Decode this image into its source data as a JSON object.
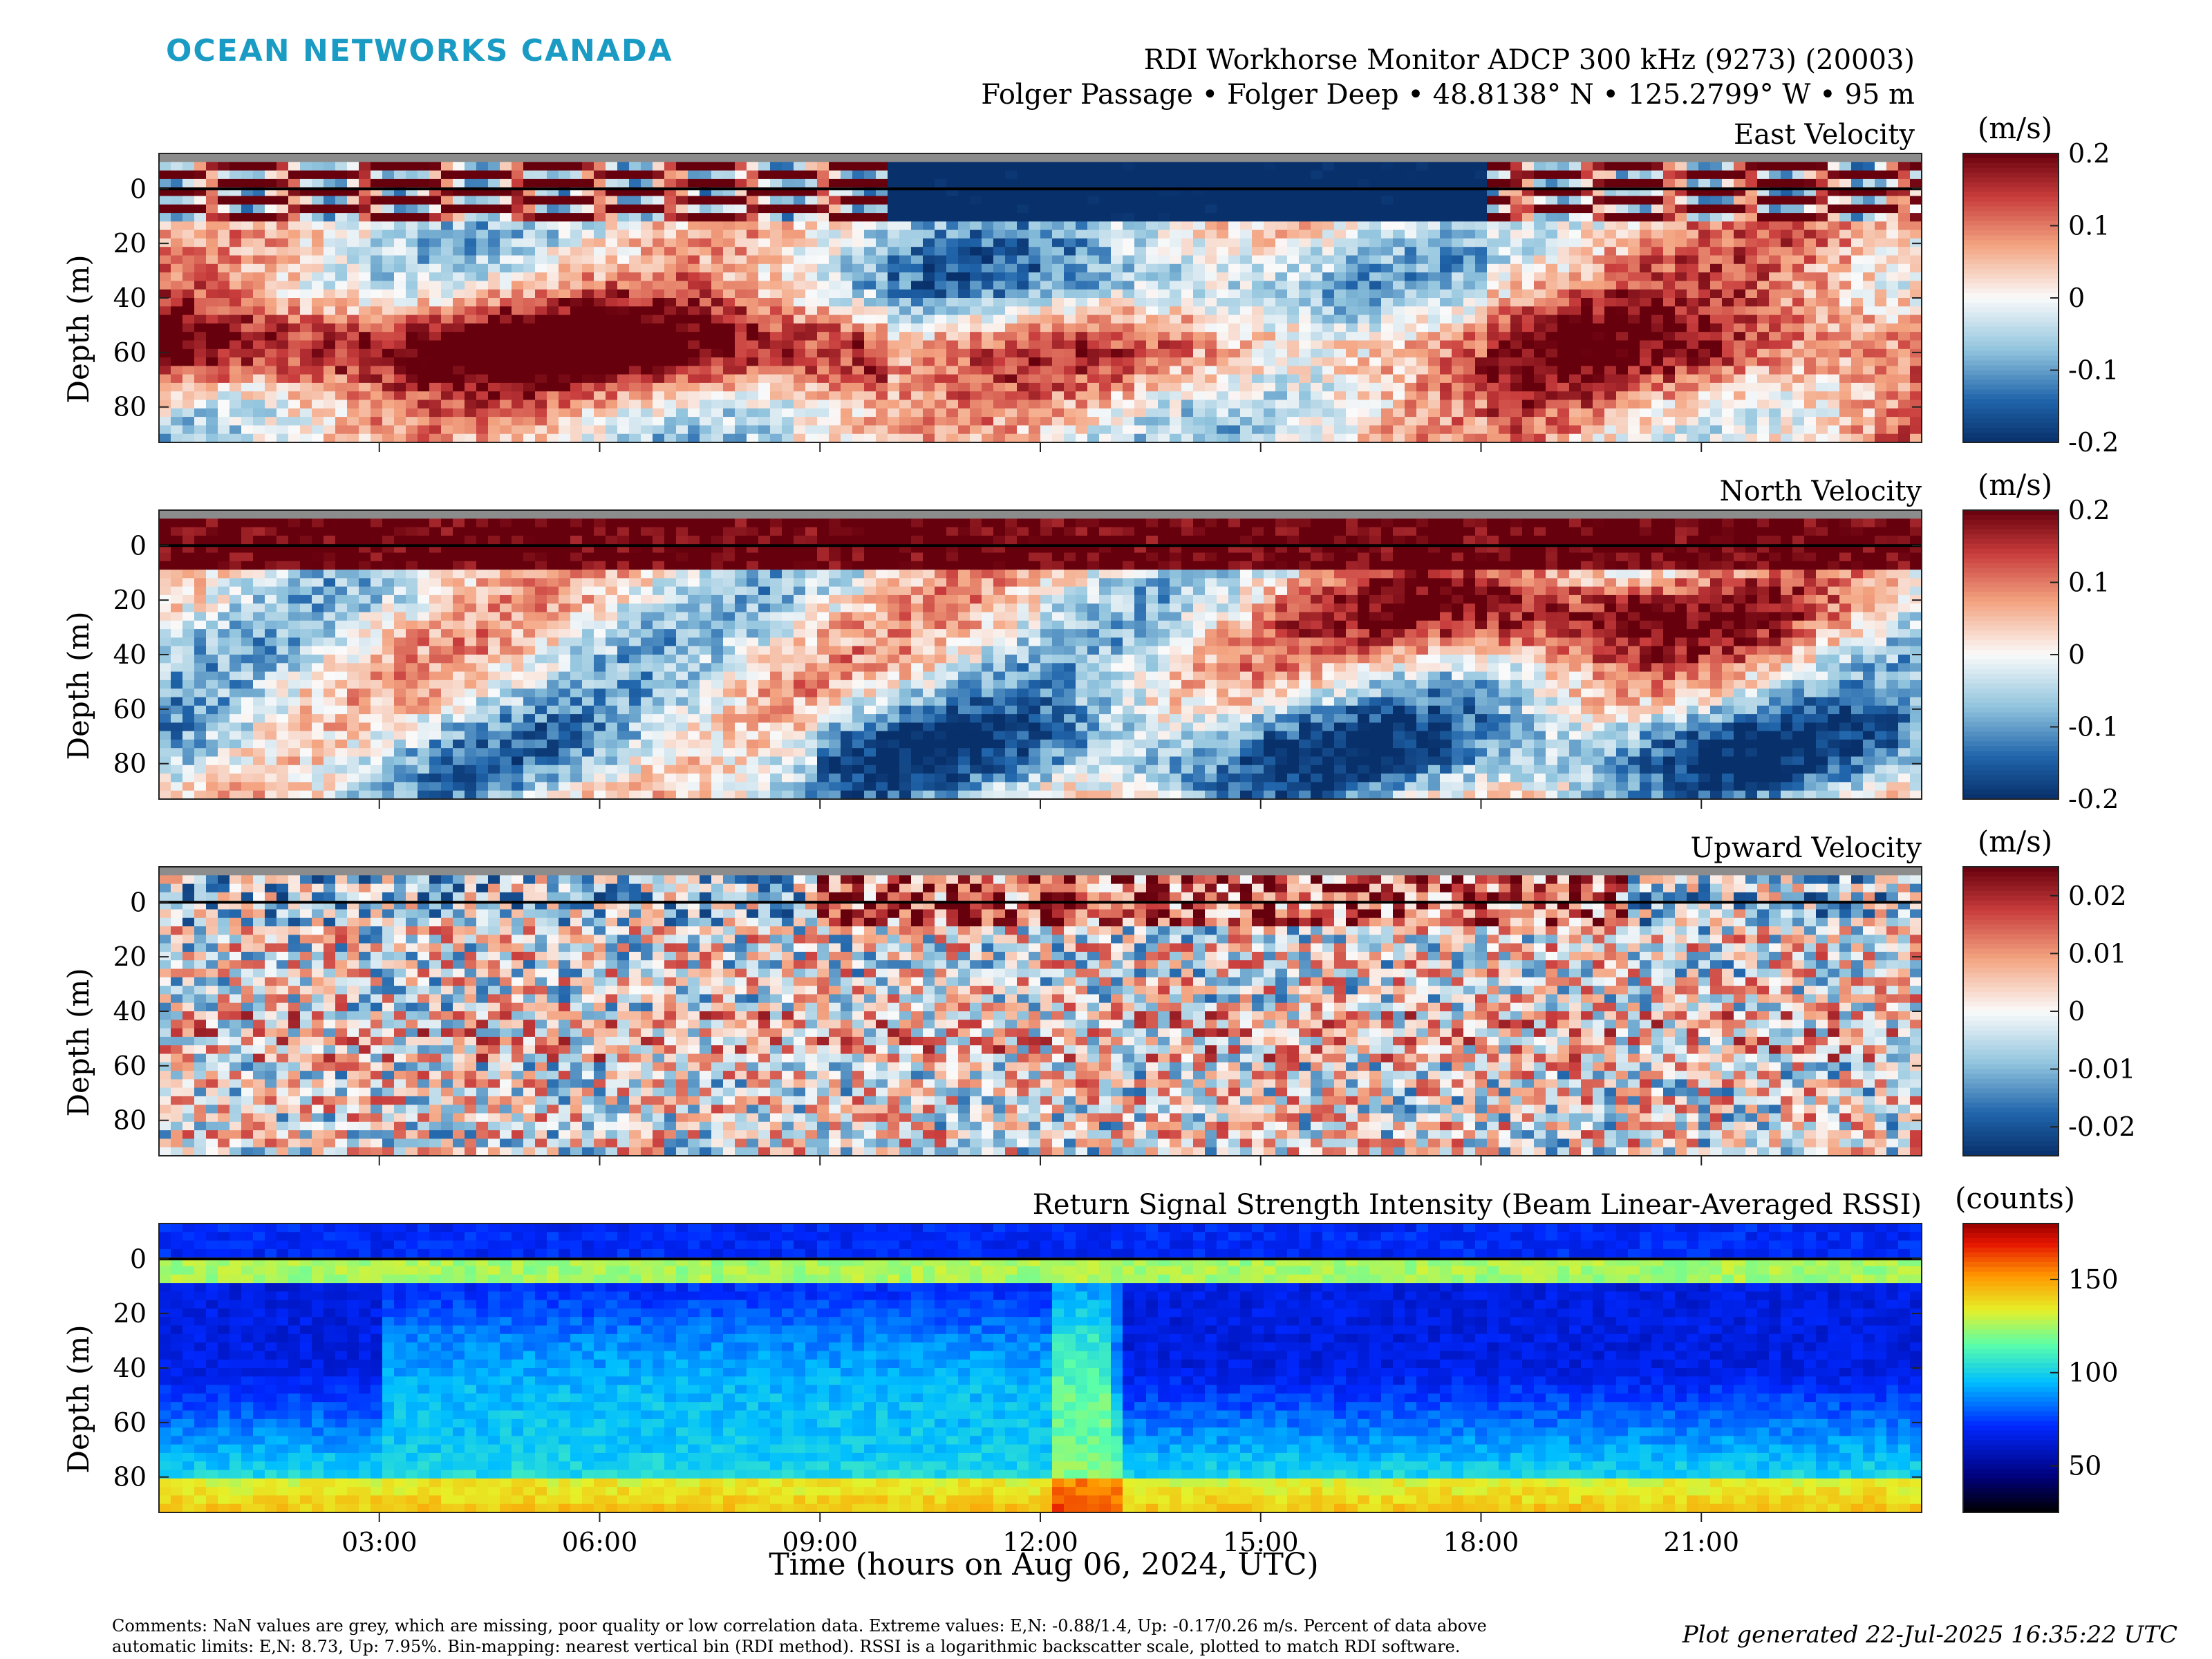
{
  "header": {
    "logo_text": "OCEAN NETWORKS CANADA",
    "logo_color": "#1a9bc4",
    "title_line1": "RDI Workhorse Monitor ADCP 300 kHz (9273) (20003)",
    "title_line2": "Folger Passage • Folger Deep • 48.8138° N • 125.2799° W • 95 m"
  },
  "chart_data": [
    {
      "type": "heatmap",
      "title": "East Velocity",
      "ylabel": "Depth (m)",
      "ylim": [
        -13,
        93
      ],
      "yticks": [
        0,
        20,
        40,
        60,
        80
      ],
      "xlim_hours": [
        0,
        24
      ],
      "colormap": "red-white-blue diverging",
      "colorbar": {
        "unit": "(m/s)",
        "range": [
          -0.2,
          0.2
        ],
        "ticks": [
          0.2,
          0.1,
          0,
          -0.1,
          -0.2
        ],
        "tick_labels": [
          "0.2",
          "0.1",
          "0",
          "-0.1",
          "-0.2"
        ]
      },
      "surface_line_depth": 0
    },
    {
      "type": "heatmap",
      "title": "North Velocity",
      "ylabel": "Depth (m)",
      "ylim": [
        -13,
        93
      ],
      "yticks": [
        0,
        20,
        40,
        60,
        80
      ],
      "xlim_hours": [
        0,
        24
      ],
      "colormap": "red-white-blue diverging",
      "colorbar": {
        "unit": "(m/s)",
        "range": [
          -0.2,
          0.2
        ],
        "ticks": [
          0.2,
          0.1,
          0,
          -0.1,
          -0.2
        ],
        "tick_labels": [
          "0.2",
          "0.1",
          "0",
          "-0.1",
          "-0.2"
        ]
      },
      "surface_line_depth": 0
    },
    {
      "type": "heatmap",
      "title": "Upward Velocity",
      "ylabel": "Depth (m)",
      "ylim": [
        -13,
        93
      ],
      "yticks": [
        0,
        20,
        40,
        60,
        80
      ],
      "xlim_hours": [
        0,
        24
      ],
      "colormap": "red-white-blue diverging",
      "colorbar": {
        "unit": "(m/s)",
        "range": [
          -0.025,
          0.025
        ],
        "ticks": [
          0.02,
          0.01,
          0,
          -0.01,
          -0.02
        ],
        "tick_labels": [
          "0.02",
          "0.01",
          "0",
          "-0.01",
          "-0.02"
        ]
      },
      "surface_line_depth": 0
    },
    {
      "type": "heatmap",
      "title": "Return Signal Strength Intensity (Beam Linear-Averaged RSSI)",
      "ylabel": "Depth (m)",
      "ylim": [
        -13,
        93
      ],
      "yticks": [
        0,
        20,
        40,
        60,
        80
      ],
      "xlim_hours": [
        0,
        24
      ],
      "colormap": "jet",
      "colorbar": {
        "unit": "(counts)",
        "range": [
          25,
          180
        ],
        "ticks": [
          150,
          100,
          50
        ],
        "tick_labels": [
          "150",
          "100",
          "50"
        ]
      },
      "surface_line_depth": 0
    }
  ],
  "x_axis": {
    "label": "Time (hours on Aug 06, 2024, UTC)",
    "ticks_hours": [
      3,
      6,
      9,
      12,
      15,
      18,
      21
    ],
    "tick_labels": [
      "03:00",
      "06:00",
      "09:00",
      "12:00",
      "15:00",
      "18:00",
      "21:00"
    ]
  },
  "footer": {
    "comments_line1": "Comments: NaN values are grey, which are missing, poor quality or low correlation data. Extreme values: E,N: -0.88/1.4, Up: -0.17/0.26 m/s. Percent of data above",
    "comments_line2": "automatic limits: E,N: 8.73, Up: 7.95%. Bin-mapping: nearest vertical bin (RDI method). RSSI is a logarithmic backscatter scale, plotted to match RDI software.",
    "generated": "Plot generated 22-Jul-2025 16:35:22 UTC"
  }
}
